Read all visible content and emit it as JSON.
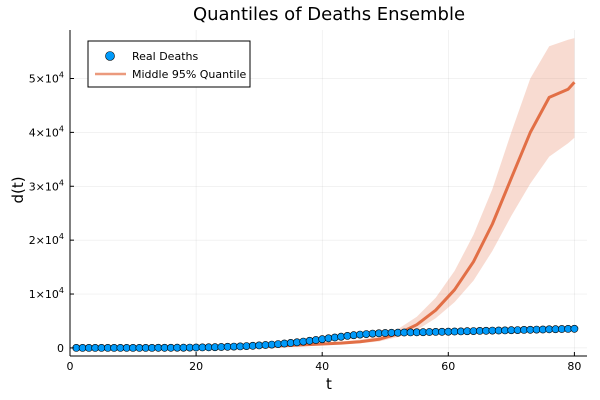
{
  "chart_data": {
    "type": "line",
    "title": "Quantiles of Deaths Ensemble",
    "xlabel": "t",
    "ylabel": "d(t)",
    "xlim": [
      0,
      82
    ],
    "ylim": [
      -1500,
      59000
    ],
    "x_ticks": [
      0,
      20,
      40,
      60,
      80
    ],
    "y_ticks": [
      {
        "value": 0,
        "mant": "0",
        "exp": ""
      },
      {
        "value": 10000,
        "mant": "1×10",
        "exp": "4"
      },
      {
        "value": 20000,
        "mant": "2×10",
        "exp": "4"
      },
      {
        "value": 30000,
        "mant": "3×10",
        "exp": "4"
      },
      {
        "value": 40000,
        "mant": "4×10",
        "exp": "4"
      },
      {
        "value": 50000,
        "mant": "5×10",
        "exp": "4"
      }
    ],
    "grid": true,
    "legend_position": "top-left",
    "series": [
      {
        "name": "Real Deaths",
        "kind": "scatter",
        "color": "#009AFA",
        "x": [
          1,
          2,
          3,
          4,
          5,
          6,
          7,
          8,
          9,
          10,
          11,
          12,
          13,
          14,
          15,
          16,
          17,
          18,
          19,
          20,
          21,
          22,
          23,
          24,
          25,
          26,
          27,
          28,
          29,
          30,
          31,
          32,
          33,
          34,
          35,
          36,
          37,
          38,
          39,
          40,
          41,
          42,
          43,
          44,
          45,
          46,
          47,
          48,
          49,
          50,
          51,
          52,
          53,
          54,
          55,
          56,
          57,
          58,
          59,
          60,
          61,
          62,
          63,
          64,
          65,
          66,
          67,
          68,
          69,
          70,
          71,
          72,
          73,
          74,
          75,
          76,
          77,
          78,
          79,
          80
        ],
        "y": [
          0,
          0,
          0,
          0,
          0,
          1,
          1,
          2,
          3,
          4,
          6,
          8,
          11,
          15,
          20,
          26,
          34,
          44,
          57,
          72,
          90,
          112,
          138,
          168,
          203,
          243,
          289,
          341,
          400,
          466,
          541,
          624,
          716,
          817,
          928,
          1049,
          1180,
          1320,
          1467,
          1620,
          1776,
          1932,
          2083,
          2227,
          2358,
          2474,
          2572,
          2652,
          2715,
          2763,
          2800,
          2830,
          2855,
          2878,
          2900,
          2922,
          2945,
          2968,
          2992,
          3017,
          3043,
          3070,
          3097,
          3124,
          3151,
          3178,
          3205,
          3232,
          3259,
          3286,
          3313,
          3340,
          3367,
          3394,
          3421,
          3448,
          3475,
          3502,
          3529,
          3556
        ]
      },
      {
        "name": "Middle 95% Quantile",
        "kind": "line",
        "color": "#E26F46",
        "x": [
          1,
          4,
          7,
          10,
          13,
          16,
          19,
          22,
          25,
          28,
          31,
          34,
          37,
          40,
          43,
          46,
          49,
          52,
          55,
          58,
          61,
          64,
          67,
          70,
          73,
          76,
          79,
          80
        ],
        "y": [
          0,
          0,
          0,
          0,
          0,
          5,
          20,
          60,
          120,
          200,
          300,
          420,
          560,
          720,
          900,
          1150,
          1600,
          2600,
          4300,
          7000,
          10800,
          16000,
          23000,
          31500,
          40000,
          46500,
          48000,
          49300
        ],
        "lower": [
          0,
          0,
          0,
          0,
          0,
          3,
          15,
          45,
          90,
          150,
          225,
          315,
          420,
          540,
          680,
          870,
          1200,
          2000,
          3300,
          5500,
          8500,
          12500,
          18000,
          24500,
          30500,
          35500,
          38000,
          39000
        ],
        "upper": [
          0,
          0,
          0,
          0,
          0,
          8,
          28,
          80,
          160,
          270,
          400,
          560,
          750,
          960,
          1200,
          1540,
          2150,
          3500,
          5800,
          9300,
          14300,
          21000,
          29500,
          40000,
          50000,
          56000,
          57200,
          57500
        ]
      }
    ]
  }
}
